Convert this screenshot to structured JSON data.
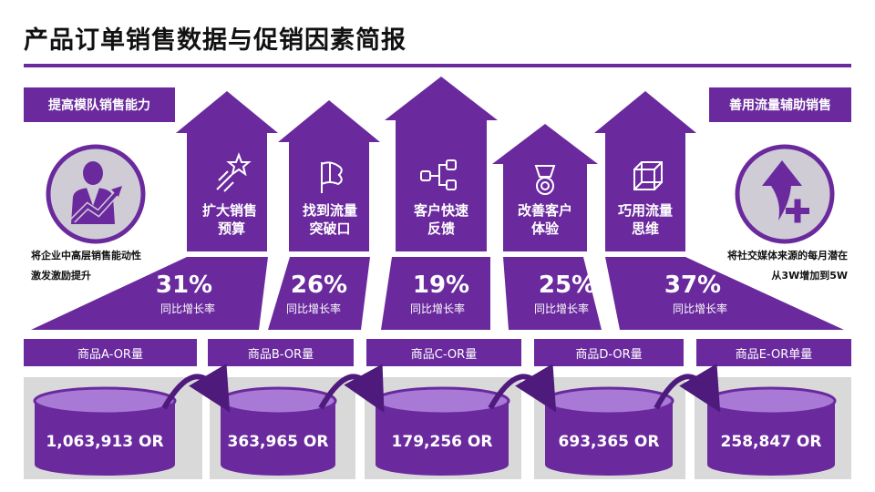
{
  "title": "产品订单销售数据与促销因素简报",
  "colors": {
    "purple": "#6a2a9e",
    "dark_purple": "#4e1a7c",
    "mid_purple": "#7b3fb0",
    "light_purple": "#a87ad6",
    "gray": "#d9d9d9",
    "circle_gray": "#d0ccd6"
  },
  "left": {
    "tag": "提高模队销售能力",
    "icon": "person-growth-icon",
    "lines": [
      "将企业中高层销售能动性",
      "激发激励提升"
    ]
  },
  "right": {
    "tag": "善用流量辅助销售",
    "icon": "arrow-up-plus-icon",
    "lines": [
      "将社交媒体来源的每月潜在",
      "从3W增加到5W"
    ]
  },
  "houses": [
    {
      "icon": "stars-icon",
      "lines": [
        "扩大销售",
        "预算"
      ]
    },
    {
      "icon": "flag-icon",
      "lines": [
        "找到流量",
        "突破口"
      ]
    },
    {
      "icon": "flow-icon",
      "lines": [
        "客户快速",
        "反馈"
      ]
    },
    {
      "icon": "medal-icon",
      "lines": [
        "改善客户",
        "体验"
      ]
    },
    {
      "icon": "cube-icon",
      "lines": [
        "巧用流量",
        "思维"
      ]
    }
  ],
  "stats": [
    {
      "value": "31%",
      "label": "同比增长率"
    },
    {
      "value": "26%",
      "label": "同比增长率"
    },
    {
      "value": "19%",
      "label": "同比增长率"
    },
    {
      "value": "25%",
      "label": "同比增长率"
    },
    {
      "value": "37%",
      "label": "同比增长率"
    }
  ],
  "products": [
    {
      "label": "商品A-OR量",
      "value": "1,063,913 OR"
    },
    {
      "label": "商品B-OR量",
      "value": "363,965 OR"
    },
    {
      "label": "商品C-OR量",
      "value": "179,256 OR"
    },
    {
      "label": "商品D-OR量",
      "value": "693,365 OR"
    },
    {
      "label": "商品E-OR单量",
      "value": "258,847 OR"
    }
  ]
}
